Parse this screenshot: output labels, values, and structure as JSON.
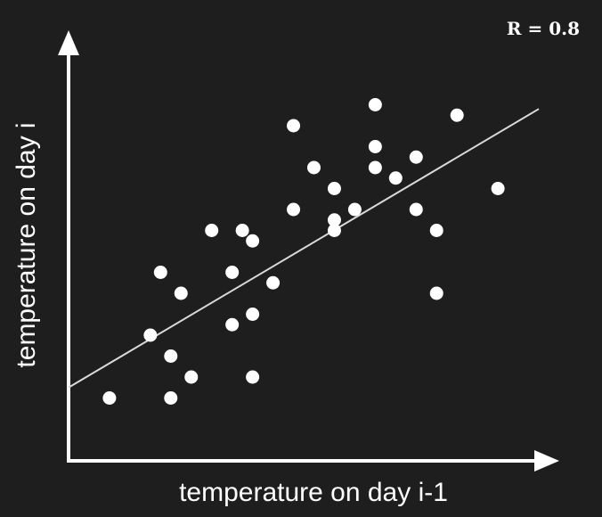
{
  "colors": {
    "background": "#1e1e1e",
    "foreground": "#ffffff",
    "fit_line": "#d9d9d9"
  },
  "chart_data": {
    "type": "scatter",
    "title": "",
    "xlabel": "temperature on day i-1",
    "ylabel": "temperature on day i",
    "annotation": "R = 0.8",
    "grid": false,
    "xlim": [
      0,
      24
    ],
    "ylim": [
      0,
      20
    ],
    "points": [
      {
        "x": 2.0,
        "y": 3.0
      },
      {
        "x": 4.0,
        "y": 6.0
      },
      {
        "x": 4.5,
        "y": 9.0
      },
      {
        "x": 5.0,
        "y": 5.0
      },
      {
        "x": 5.0,
        "y": 3.0
      },
      {
        "x": 5.5,
        "y": 8.0
      },
      {
        "x": 6.0,
        "y": 4.0
      },
      {
        "x": 7.0,
        "y": 11.0
      },
      {
        "x": 8.0,
        "y": 9.0
      },
      {
        "x": 8.0,
        "y": 6.5
      },
      {
        "x": 8.5,
        "y": 11.0
      },
      {
        "x": 9.0,
        "y": 10.5
      },
      {
        "x": 9.0,
        "y": 7.0
      },
      {
        "x": 9.0,
        "y": 4.0
      },
      {
        "x": 10.0,
        "y": 8.5
      },
      {
        "x": 11.0,
        "y": 12.0
      },
      {
        "x": 11.0,
        "y": 16.0
      },
      {
        "x": 12.0,
        "y": 14.0
      },
      {
        "x": 13.0,
        "y": 13.0
      },
      {
        "x": 13.0,
        "y": 11.0
      },
      {
        "x": 13.0,
        "y": 11.5
      },
      {
        "x": 14.0,
        "y": 12.0
      },
      {
        "x": 15.0,
        "y": 14.0
      },
      {
        "x": 15.0,
        "y": 15.0
      },
      {
        "x": 15.0,
        "y": 17.0
      },
      {
        "x": 16.0,
        "y": 13.5
      },
      {
        "x": 17.0,
        "y": 14.5
      },
      {
        "x": 17.0,
        "y": 12.0
      },
      {
        "x": 18.0,
        "y": 11.0
      },
      {
        "x": 18.0,
        "y": 8.0
      },
      {
        "x": 19.0,
        "y": 16.5
      },
      {
        "x": 21.0,
        "y": 13.0
      }
    ],
    "trendline": {
      "x": [
        0,
        23
      ],
      "y": [
        3.5,
        16.8
      ]
    }
  }
}
